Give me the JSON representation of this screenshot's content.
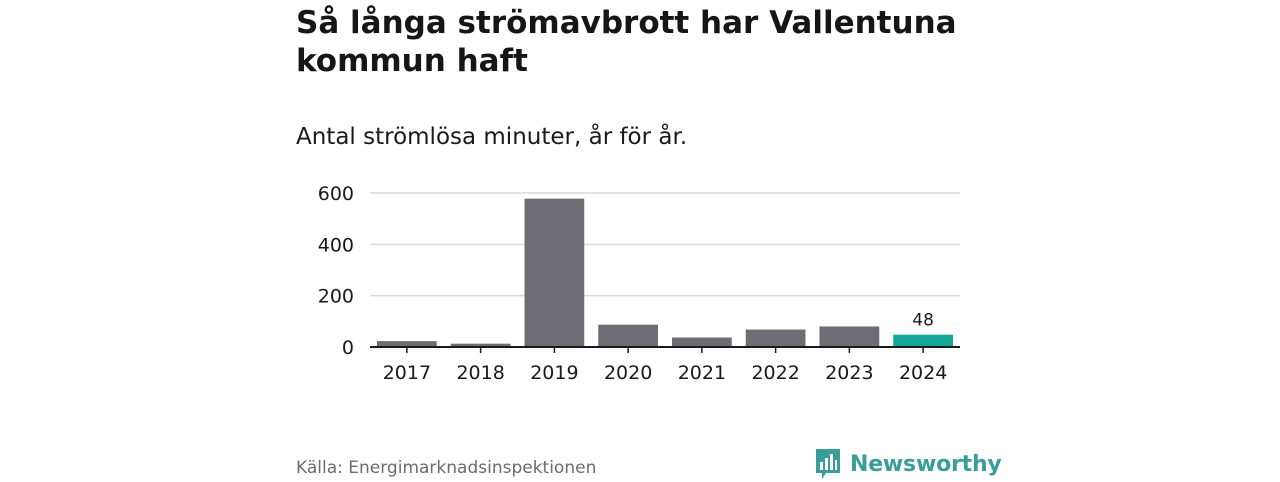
{
  "title": "Så långa strömavbrott har Vallentuna kommun haft",
  "subtitle": "Antal strömlösa minuter, år för år.",
  "source": "Källa: Energimarknadsinspektionen",
  "brand": {
    "name": "Newsworthy",
    "logo_icon": "newsworthy-bar-chart-logo-icon",
    "color": "#3a9e98"
  },
  "chart_data": {
    "type": "bar",
    "title": "Så långa strömavbrott har Vallentuna kommun haft",
    "subtitle": "Antal strömlösa minuter, år för år.",
    "categories": [
      "2017",
      "2018",
      "2019",
      "2020",
      "2021",
      "2022",
      "2023",
      "2024"
    ],
    "values": [
      23,
      13,
      578,
      87,
      37,
      68,
      80,
      48
    ],
    "data_labels": {
      "2024": "48"
    },
    "highlight_category": "2024",
    "ylim": [
      0,
      600
    ],
    "yticks": [
      0,
      200,
      400,
      600
    ],
    "grid": true,
    "colors": {
      "bar": "#6e6d73",
      "highlight": "#13a79a",
      "grid": "#d9d9d9",
      "axis": "#1a1a1a"
    }
  }
}
